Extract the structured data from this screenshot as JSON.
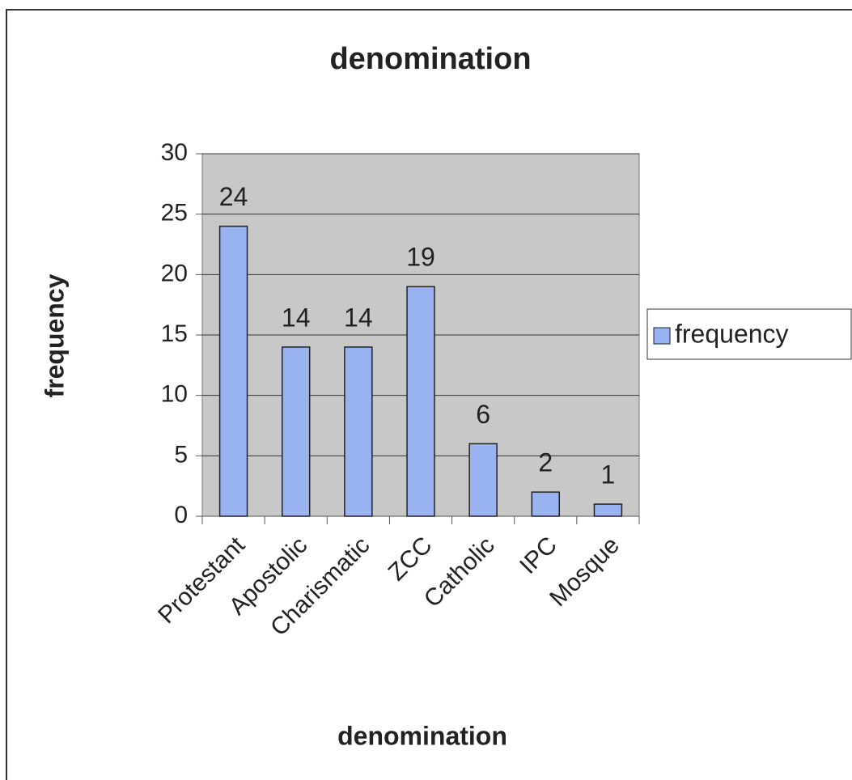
{
  "chart_data": {
    "type": "bar",
    "title": "denomination",
    "x_label": "denomination",
    "y_label": "frequency",
    "categories": [
      "Protestant",
      "Apostolic",
      "Charismatic",
      "ZCC",
      "Catholic",
      "IPC",
      "Mosque"
    ],
    "series": [
      {
        "name": "frequency",
        "color": "#99b3f0",
        "values": [
          24,
          14,
          14,
          19,
          6,
          2,
          1
        ]
      }
    ],
    "ylim": [
      0,
      30
    ],
    "yticks": [
      0,
      5,
      10,
      15,
      20,
      25,
      30
    ],
    "grid": true,
    "legend": "right"
  }
}
